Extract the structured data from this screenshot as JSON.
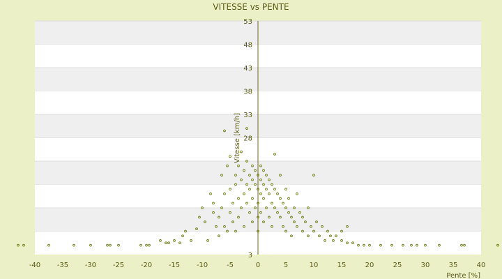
{
  "chart_data": {
    "type": "scatter",
    "title": "VITESSE vs PENTE",
    "xlabel": "Pente [%]",
    "ylabel": "Vitesse [km/h]",
    "xlim": [
      -40,
      40
    ],
    "ylim": [
      3,
      53
    ],
    "xticks": [
      -40,
      -35,
      -30,
      -25,
      -20,
      -15,
      -10,
      -5,
      0,
      5,
      10,
      15,
      20,
      25,
      30,
      35,
      40
    ],
    "yticks": [
      3,
      8,
      13,
      18,
      23,
      28,
      33,
      38,
      43,
      48,
      53
    ],
    "ytick_labels": [
      "3",
      "",
      "",
      "",
      "",
      "28",
      "33",
      "38",
      "43",
      "48",
      "53"
    ],
    "grid": "horizontal bands",
    "legend": "none",
    "colors": {
      "marker": "#6b7a10",
      "band": "#efefef",
      "plot_bg": "#ffffff",
      "axis": "#6b6b1a"
    },
    "points": [
      [
        -43,
        5
      ],
      [
        -42,
        5
      ],
      [
        -37.5,
        5
      ],
      [
        -33,
        5
      ],
      [
        -30,
        5
      ],
      [
        -27,
        5
      ],
      [
        -26.5,
        5
      ],
      [
        -25,
        5
      ],
      [
        -21,
        5
      ],
      [
        -20,
        5
      ],
      [
        -19.5,
        5
      ],
      [
        -17.5,
        6
      ],
      [
        -16.5,
        5.5
      ],
      [
        -16,
        5.5
      ],
      [
        -15,
        6
      ],
      [
        -14,
        5.5
      ],
      [
        -13.5,
        7
      ],
      [
        -13,
        8
      ],
      [
        -12,
        6
      ],
      [
        -11,
        8.5
      ],
      [
        -10.5,
        11
      ],
      [
        -10,
        13
      ],
      [
        -9.5,
        10
      ],
      [
        -9,
        6
      ],
      [
        -8.5,
        16
      ],
      [
        -8,
        12
      ],
      [
        -8,
        14
      ],
      [
        -7.5,
        9
      ],
      [
        -7,
        7
      ],
      [
        -7,
        11
      ],
      [
        -6.5,
        13
      ],
      [
        -6.5,
        20
      ],
      [
        -6,
        16
      ],
      [
        -6,
        9
      ],
      [
        -6,
        29.5
      ],
      [
        -5.5,
        22
      ],
      [
        -5.5,
        8
      ],
      [
        -5,
        12
      ],
      [
        -5,
        17
      ],
      [
        -5,
        24
      ],
      [
        -4.5,
        14
      ],
      [
        -4.5,
        10
      ],
      [
        -4,
        20
      ],
      [
        -4,
        18
      ],
      [
        -4,
        8
      ],
      [
        -3.5,
        22
      ],
      [
        -3.5,
        15
      ],
      [
        -3.5,
        11
      ],
      [
        -3,
        19
      ],
      [
        -3,
        13
      ],
      [
        -3,
        25
      ],
      [
        -2.5,
        21
      ],
      [
        -2.5,
        16
      ],
      [
        -2.5,
        9
      ],
      [
        -2,
        18
      ],
      [
        -2,
        14
      ],
      [
        -2,
        23
      ],
      [
        -2,
        30
      ],
      [
        -1.5,
        20
      ],
      [
        -1.5,
        17
      ],
      [
        -1.5,
        12
      ],
      [
        -1,
        22
      ],
      [
        -1,
        19
      ],
      [
        -1,
        15
      ],
      [
        -1,
        10
      ],
      [
        -0.5,
        21
      ],
      [
        -0.5,
        18
      ],
      [
        -0.5,
        13
      ],
      [
        0,
        20
      ],
      [
        0,
        17
      ],
      [
        0,
        14
      ],
      [
        0,
        11
      ],
      [
        0,
        8
      ],
      [
        0.5,
        22
      ],
      [
        0.5,
        19
      ],
      [
        0.5,
        16
      ],
      [
        0.5,
        12
      ],
      [
        1,
        21
      ],
      [
        1,
        18
      ],
      [
        1,
        15
      ],
      [
        1,
        10
      ],
      [
        1.5,
        20
      ],
      [
        1.5,
        17
      ],
      [
        1.5,
        13
      ],
      [
        2,
        19
      ],
      [
        2,
        16
      ],
      [
        2,
        11
      ],
      [
        2.5,
        18
      ],
      [
        2.5,
        14
      ],
      [
        2.5,
        9
      ],
      [
        3,
        17
      ],
      [
        3,
        13
      ],
      [
        3,
        24.5
      ],
      [
        3.5,
        16
      ],
      [
        3.5,
        12
      ],
      [
        4,
        15
      ],
      [
        4,
        11
      ],
      [
        4,
        20
      ],
      [
        4.5,
        14
      ],
      [
        4.5,
        9
      ],
      [
        5,
        13
      ],
      [
        5,
        17
      ],
      [
        5,
        8
      ],
      [
        5.5,
        12
      ],
      [
        5.5,
        15
      ],
      [
        6,
        11
      ],
      [
        6,
        7
      ],
      [
        6.5,
        13
      ],
      [
        6.5,
        10
      ],
      [
        7,
        9
      ],
      [
        7,
        16
      ],
      [
        7.5,
        12
      ],
      [
        8,
        8
      ],
      [
        8,
        11
      ],
      [
        8.5,
        10
      ],
      [
        9,
        7
      ],
      [
        9,
        13
      ],
      [
        9.5,
        9
      ],
      [
        10,
        8
      ],
      [
        10,
        20
      ],
      [
        10.5,
        10
      ],
      [
        11,
        7
      ],
      [
        11.5,
        9
      ],
      [
        12,
        6
      ],
      [
        12.5,
        8
      ],
      [
        13,
        7
      ],
      [
        13.5,
        6
      ],
      [
        14,
        7
      ],
      [
        15,
        6
      ],
      [
        15,
        8
      ],
      [
        16,
        5.5
      ],
      [
        17,
        5.5
      ],
      [
        16,
        9
      ],
      [
        18,
        5
      ],
      [
        19,
        5
      ],
      [
        20,
        5
      ],
      [
        22,
        5
      ],
      [
        24,
        5
      ],
      [
        26,
        5
      ],
      [
        27.5,
        5
      ],
      [
        28.5,
        5
      ],
      [
        30,
        5
      ],
      [
        32.5,
        5
      ],
      [
        36.5,
        5
      ],
      [
        37,
        5
      ],
      [
        43,
        5
      ]
    ]
  }
}
